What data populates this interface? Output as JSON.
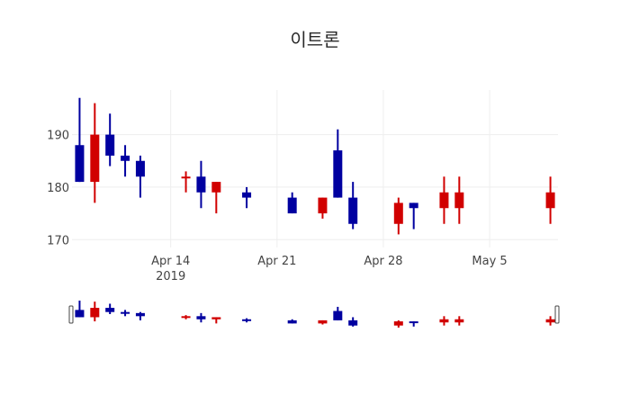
{
  "title": "이트론",
  "colors": {
    "increasing": "#d10000",
    "decreasing": "#0000a0",
    "grid": "#eeeeee",
    "text": "#444444"
  },
  "chart_data": {
    "type": "candlestick",
    "title": "이트론",
    "xlabel": "",
    "ylabel": "",
    "ylim": [
      168.5,
      198.5
    ],
    "yticks": [
      170,
      180,
      190
    ],
    "xticks": [
      {
        "date": "2019-04-14",
        "label": "Apr 14",
        "sublabel": "2019"
      },
      {
        "date": "2019-04-21",
        "label": "Apr 21",
        "sublabel": ""
      },
      {
        "date": "2019-04-28",
        "label": "Apr 28",
        "sublabel": ""
      },
      {
        "date": "2019-05-05",
        "label": "May 5",
        "sublabel": ""
      }
    ],
    "xrange": [
      "2019-04-07T12:00",
      "2019-05-09T12:00"
    ],
    "grid": true,
    "rangeslider": true,
    "candles": [
      {
        "date": "2019-04-08",
        "open": 188,
        "high": 197,
        "low": 181,
        "close": 181
      },
      {
        "date": "2019-04-09",
        "open": 181,
        "high": 196,
        "low": 177,
        "close": 190
      },
      {
        "date": "2019-04-10",
        "open": 190,
        "high": 194,
        "low": 184,
        "close": 186
      },
      {
        "date": "2019-04-11",
        "open": 186,
        "high": 188,
        "low": 182,
        "close": 185
      },
      {
        "date": "2019-04-12",
        "open": 185,
        "high": 186,
        "low": 178,
        "close": 182
      },
      {
        "date": "2019-04-15",
        "open": 182,
        "high": 183,
        "low": 179,
        "close": 182
      },
      {
        "date": "2019-04-16",
        "open": 182,
        "high": 185,
        "low": 176,
        "close": 179
      },
      {
        "date": "2019-04-17",
        "open": 179,
        "high": 181,
        "low": 175,
        "close": 181
      },
      {
        "date": "2019-04-19",
        "open": 179,
        "high": 180,
        "low": 176,
        "close": 178
      },
      {
        "date": "2019-04-22",
        "open": 178,
        "high": 179,
        "low": 175,
        "close": 175
      },
      {
        "date": "2019-04-24",
        "open": 175,
        "high": 178,
        "low": 174,
        "close": 178
      },
      {
        "date": "2019-04-25",
        "open": 187,
        "high": 191,
        "low": 178,
        "close": 178
      },
      {
        "date": "2019-04-26",
        "open": 178,
        "high": 181,
        "low": 172,
        "close": 173
      },
      {
        "date": "2019-04-29",
        "open": 173,
        "high": 178,
        "low": 171,
        "close": 177
      },
      {
        "date": "2019-04-30",
        "open": 177,
        "high": 177,
        "low": 172,
        "close": 176
      },
      {
        "date": "2019-05-02",
        "open": 176,
        "high": 182,
        "low": 173,
        "close": 179
      },
      {
        "date": "2019-05-03",
        "open": 176,
        "high": 182,
        "low": 173,
        "close": 179
      },
      {
        "date": "2019-05-09",
        "open": 176,
        "high": 182,
        "low": 173,
        "close": 179
      }
    ]
  }
}
